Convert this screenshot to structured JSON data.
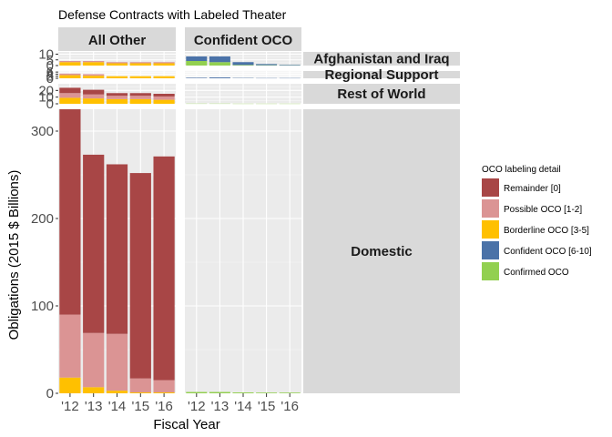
{
  "chart_data": {
    "type": "bar",
    "title": "Defense Contracts with Labeled Theater",
    "xlabel": "Fiscal Year",
    "ylabel": "Obligations (2015 $ Billions)",
    "facet_columns": [
      "All Other",
      "Confident OCO"
    ],
    "facet_rows": [
      "Afghanistan and Iraq",
      "Regional Support",
      "Rest of World",
      "Domestic"
    ],
    "facet_layout": "free_y",
    "categories": [
      "'12",
      "'13",
      "'14",
      "'15",
      "'16"
    ],
    "legend": {
      "title": "OCO labeling detail",
      "position": "right",
      "entries": [
        {
          "label": "Remainder [0]",
          "color": "#A84646"
        },
        {
          "label": "Possible OCO [1-2]",
          "color": "#DB9494"
        },
        {
          "label": "Borderline OCO [3-5]",
          "color": "#FFC000"
        },
        {
          "label": "Confident OCO [6-10]",
          "color": "#4A72A8"
        },
        {
          "label": "Confirmed OCO",
          "color": "#92D050"
        }
      ]
    },
    "grid": true,
    "series_order": [
      "Confirmed OCO",
      "Confident OCO [6-10]",
      "Borderline OCO [3-5]",
      "Possible OCO [1-2]",
      "Remainder [0]"
    ],
    "panels": [
      {
        "row": "Afghanistan and Iraq",
        "column": "All Other",
        "ylim": [
          0,
          12
        ],
        "yticks": [
          0,
          5,
          10
        ],
        "show_y_ticks": true,
        "series": [
          {
            "name": "Borderline OCO [3-5]",
            "values": [
              3,
              3,
              2,
              2,
              2
            ]
          },
          {
            "name": "Possible OCO [1-2]",
            "values": [
              1,
              1,
              1,
              1,
              1
            ]
          }
        ]
      },
      {
        "row": "Afghanistan and Iraq",
        "column": "Confident OCO",
        "ylim": [
          0,
          12
        ],
        "yticks": [
          0,
          5,
          10
        ],
        "show_y_ticks": false,
        "series": [
          {
            "name": "Confirmed OCO",
            "values": [
              4,
              3,
              0.5,
              0.3,
              0.2
            ]
          },
          {
            "name": "Confident OCO [6-10]",
            "values": [
              4,
              5,
              2.5,
              1,
              0.5
            ]
          }
        ]
      },
      {
        "row": "Regional Support",
        "column": "All Other",
        "ylim": [
          0,
          7
        ],
        "yticks": [
          0,
          2,
          4,
          6
        ],
        "show_y_ticks": true,
        "series": [
          {
            "name": "Borderline OCO [3-5]",
            "values": [
              3,
              2.5,
              2,
              2,
              2
            ]
          },
          {
            "name": "Possible OCO [1-2]",
            "values": [
              1.5,
              1.5,
              0,
              0,
              0
            ]
          }
        ]
      },
      {
        "row": "Regional Support",
        "column": "Confident OCO",
        "ylim": [
          0,
          7
        ],
        "yticks": [
          0,
          2,
          4,
          6
        ],
        "show_y_ticks": false,
        "series": [
          {
            "name": "Confident OCO [6-10]",
            "values": [
              0.5,
              0.8,
              0.3,
              0.2,
              0.2
            ]
          }
        ]
      },
      {
        "row": "Rest of World",
        "column": "All Other",
        "ylim": [
          0,
          30
        ],
        "yticks": [
          0,
          10,
          20
        ],
        "show_y_ticks": true,
        "series": [
          {
            "name": "Borderline OCO [3-5]",
            "values": [
              9,
              8,
              7,
              7,
              6
            ]
          },
          {
            "name": "Possible OCO [1-2]",
            "values": [
              7,
              6,
              5,
              5,
              5
            ]
          },
          {
            "name": "Remainder [0]",
            "values": [
              8,
              7,
              4,
              4,
              4
            ]
          }
        ]
      },
      {
        "row": "Rest of World",
        "column": "Confident OCO",
        "ylim": [
          0,
          30
        ],
        "yticks": [
          0,
          10,
          20
        ],
        "show_y_ticks": false,
        "series": [
          {
            "name": "Confirmed OCO",
            "values": [
              0.3,
              0.3,
              0.2,
              0.2,
              0.2
            ]
          }
        ]
      },
      {
        "row": "Domestic",
        "column": "All Other",
        "ylim": [
          0,
          325
        ],
        "yticks": [
          0,
          100,
          200,
          300
        ],
        "show_y_ticks": true,
        "series": [
          {
            "name": "Borderline OCO [3-5]",
            "values": [
              18,
              7,
              3,
              1,
              1
            ]
          },
          {
            "name": "Possible OCO [1-2]",
            "values": [
              72,
              62,
              65,
              16,
              14
            ]
          },
          {
            "name": "Remainder [0]",
            "values": [
              235,
              204,
              194,
              235,
              256
            ]
          }
        ]
      },
      {
        "row": "Domestic",
        "column": "Confident OCO",
        "ylim": [
          0,
          325
        ],
        "yticks": [
          0,
          100,
          200,
          300
        ],
        "show_y_ticks": false,
        "series": [
          {
            "name": "Confirmed OCO",
            "values": [
              1.5,
              1.5,
              1,
              0.8,
              0.8
            ]
          }
        ]
      }
    ]
  }
}
